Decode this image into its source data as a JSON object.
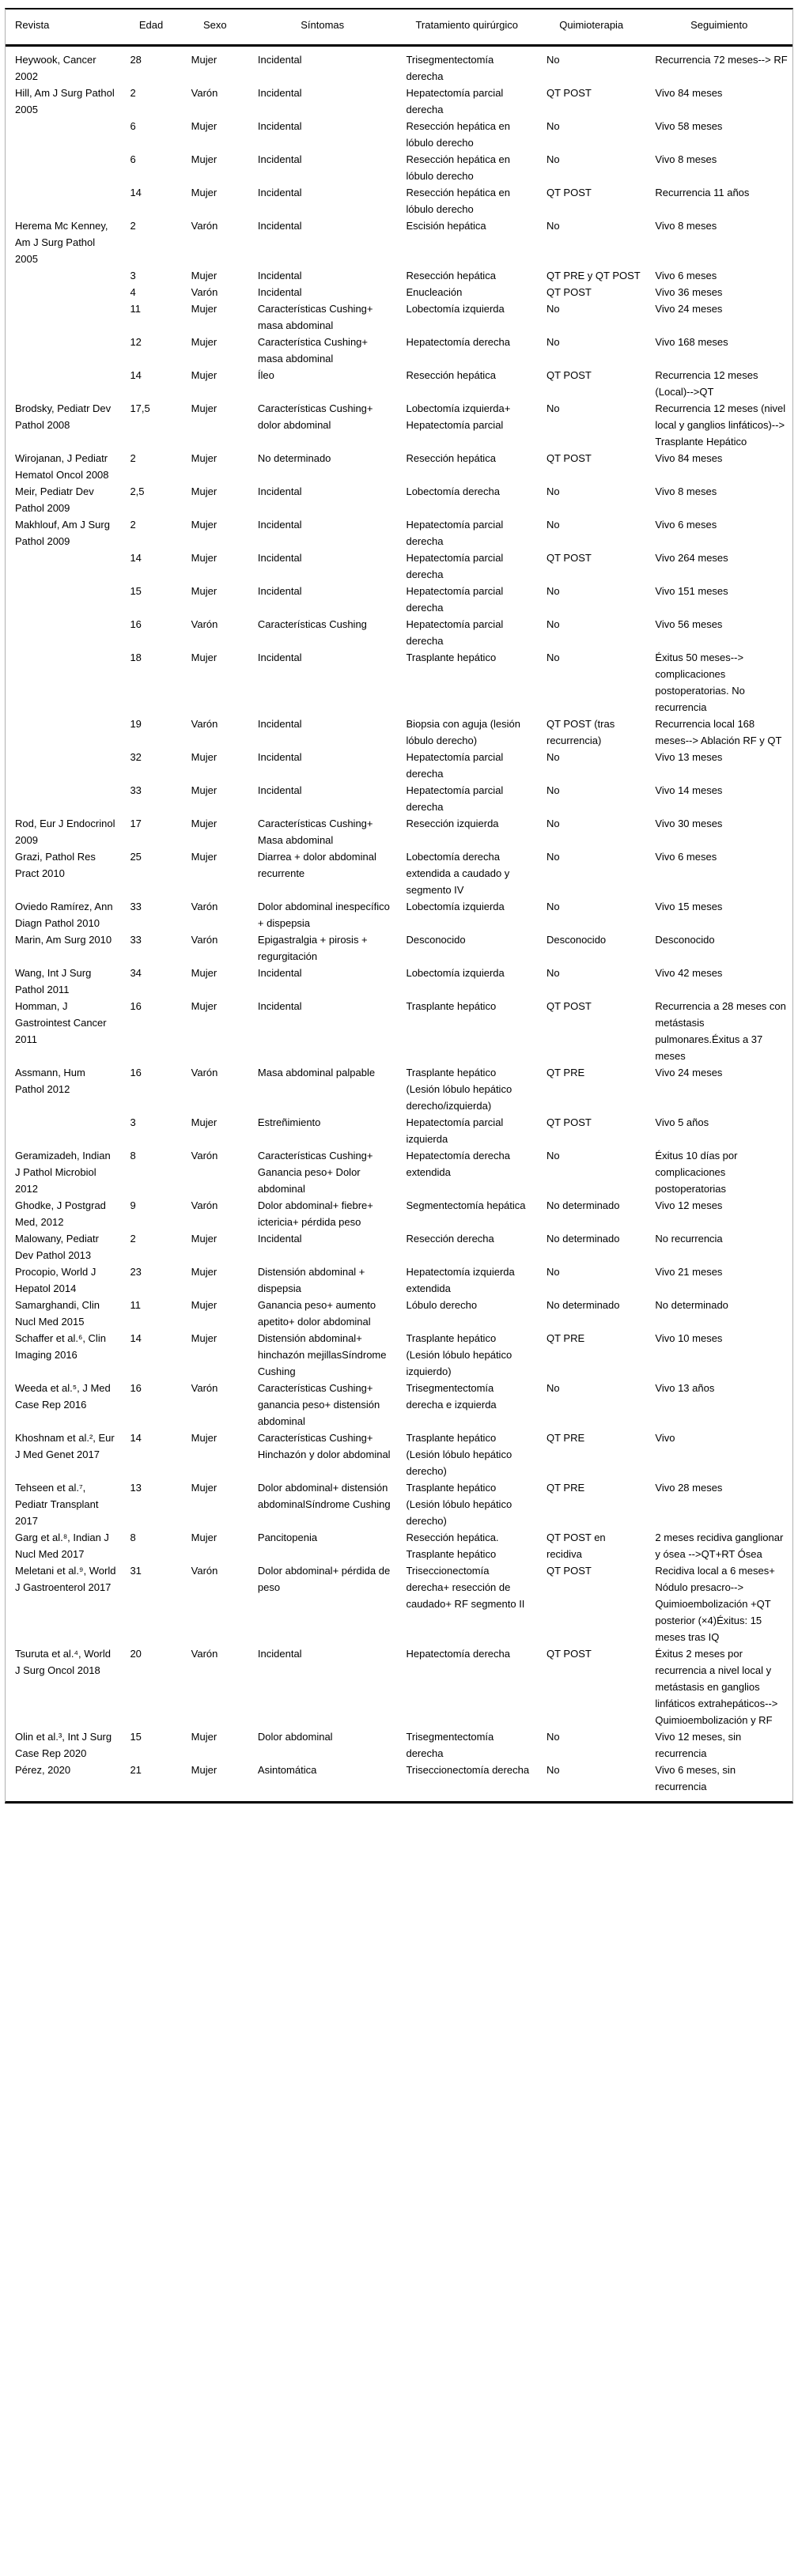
{
  "table": {
    "columns": [
      "Revista",
      "Edad",
      "Sexo",
      "Síntomas",
      "Tratamiento quirúrgico",
      "Quimioterapia",
      "Seguimiento"
    ],
    "rows": [
      {
        "revista": "Heywook, Cancer 2002",
        "edad": "28",
        "sexo": "Mujer",
        "sintomas": "Incidental",
        "tratamiento": "Trisegmentectomía derecha",
        "quimioterapia": "No",
        "seguimiento": "Recurrencia 72 meses--> RF"
      },
      {
        "revista": "Hill, Am J Surg Pathol 2005",
        "edad": "2",
        "sexo": "Varón",
        "sintomas": "Incidental",
        "tratamiento": "Hepatectomía parcial derecha",
        "quimioterapia": "QT POST",
        "seguimiento": "Vivo 84 meses"
      },
      {
        "revista": "",
        "edad": "6",
        "sexo": "Mujer",
        "sintomas": "Incidental",
        "tratamiento": "Resección hepática en lóbulo derecho",
        "quimioterapia": "No",
        "seguimiento": "Vivo 58 meses"
      },
      {
        "revista": "",
        "edad": "6",
        "sexo": "Mujer",
        "sintomas": "Incidental",
        "tratamiento": "Resección hepática en lóbulo derecho",
        "quimioterapia": "No",
        "seguimiento": "Vivo 8 meses"
      },
      {
        "revista": "",
        "edad": "14",
        "sexo": "Mujer",
        "sintomas": "Incidental",
        "tratamiento": "Resección hepática en lóbulo derecho",
        "quimioterapia": "QT POST",
        "seguimiento": "Recurrencia 11 años"
      },
      {
        "revista": "Herema Mc Kenney, Am J Surg Pathol 2005",
        "edad": "2",
        "sexo": "Varón",
        "sintomas": "Incidental",
        "tratamiento": "Escisión hepática",
        "quimioterapia": "No",
        "seguimiento": "Vivo 8 meses"
      },
      {
        "revista": "",
        "edad": "3",
        "sexo": "Mujer",
        "sintomas": "Incidental",
        "tratamiento": "Resección hepática",
        "quimioterapia": "QT PRE y QT POST",
        "seguimiento": "Vivo 6 meses"
      },
      {
        "revista": "",
        "edad": "4",
        "sexo": "Varón",
        "sintomas": "Incidental",
        "tratamiento": "Enucleación",
        "quimioterapia": "QT POST",
        "seguimiento": "Vivo 36 meses"
      },
      {
        "revista": "",
        "edad": "11",
        "sexo": "Mujer",
        "sintomas": "Características Cushing+ masa abdominal",
        "tratamiento": "Lobectomía izquierda",
        "quimioterapia": "No",
        "seguimiento": "Vivo 24 meses"
      },
      {
        "revista": "",
        "edad": "12",
        "sexo": "Mujer",
        "sintomas": "Característica Cushing+ masa abdominal",
        "tratamiento": "Hepatectomía derecha",
        "quimioterapia": "No",
        "seguimiento": "Vivo 168 meses"
      },
      {
        "revista": "",
        "edad": "14",
        "sexo": "Mujer",
        "sintomas": "Íleo",
        "tratamiento": "Resección hepática",
        "quimioterapia": "QT POST",
        "seguimiento": "Recurrencia 12 meses (Local)-->QT"
      },
      {
        "revista": "Brodsky, Pediatr Dev Pathol 2008",
        "edad": "17,5",
        "sexo": "Mujer",
        "sintomas": "Características Cushing+ dolor abdominal",
        "tratamiento": "Lobectomía izquierda+ Hepatectomía parcial",
        "quimioterapia": "No",
        "seguimiento": "Recurrencia 12 meses (nivel local y ganglios linfáticos)--> Trasplante Hepático"
      },
      {
        "revista": "Wirojanan, J Pediatr Hematol Oncol 2008",
        "edad": "2",
        "sexo": "Mujer",
        "sintomas": "No determinado",
        "tratamiento": "Resección hepática",
        "quimioterapia": "QT POST",
        "seguimiento": "Vivo 84 meses"
      },
      {
        "revista": "Meir, Pediatr Dev Pathol 2009",
        "edad": "2,5",
        "sexo": "Mujer",
        "sintomas": "Incidental",
        "tratamiento": "Lobectomía derecha",
        "quimioterapia": "No",
        "seguimiento": "Vivo 8 meses"
      },
      {
        "revista": "Makhlouf, Am J Surg Pathol 2009",
        "edad": "2",
        "sexo": "Mujer",
        "sintomas": "Incidental",
        "tratamiento": "Hepatectomía parcial derecha",
        "quimioterapia": "No",
        "seguimiento": "Vivo 6 meses"
      },
      {
        "revista": "",
        "edad": "14",
        "sexo": "Mujer",
        "sintomas": "Incidental",
        "tratamiento": "Hepatectomía parcial derecha",
        "quimioterapia": "QT POST",
        "seguimiento": "Vivo 264 meses"
      },
      {
        "revista": "",
        "edad": "15",
        "sexo": "Mujer",
        "sintomas": "Incidental",
        "tratamiento": "Hepatectomía parcial derecha",
        "quimioterapia": "No",
        "seguimiento": "Vivo 151 meses"
      },
      {
        "revista": "",
        "edad": "16",
        "sexo": "Varón",
        "sintomas": "Características Cushing",
        "tratamiento": "Hepatectomía parcial derecha",
        "quimioterapia": "No",
        "seguimiento": "Vivo 56 meses"
      },
      {
        "revista": "",
        "edad": "18",
        "sexo": "Mujer",
        "sintomas": "Incidental",
        "tratamiento": "Trasplante hepático",
        "quimioterapia": "No",
        "seguimiento": "Éxitus 50 meses--> complicaciones postoperatorias. No recurrencia"
      },
      {
        "revista": "",
        "edad": "19",
        "sexo": "Varón",
        "sintomas": "Incidental",
        "tratamiento": "Biopsia con aguja (lesión lóbulo derecho)",
        "quimioterapia": "QT POST (tras recurrencia)",
        "seguimiento": "Recurrencia local 168 meses--> Ablación RF y QT"
      },
      {
        "revista": "",
        "edad": "32",
        "sexo": "Mujer",
        "sintomas": "Incidental",
        "tratamiento": "Hepatectomía parcial derecha",
        "quimioterapia": "No",
        "seguimiento": "Vivo 13 meses"
      },
      {
        "revista": "",
        "edad": "33",
        "sexo": "Mujer",
        "sintomas": "Incidental",
        "tratamiento": "Hepatectomía parcial derecha",
        "quimioterapia": "No",
        "seguimiento": "Vivo 14 meses"
      },
      {
        "revista": "Rod, Eur J Endocrinol 2009",
        "edad": "17",
        "sexo": "Mujer",
        "sintomas": "Características Cushing+ Masa abdominal",
        "tratamiento": "Resección izquierda",
        "quimioterapia": "No",
        "seguimiento": "Vivo 30 meses"
      },
      {
        "revista": "Grazi, Pathol Res Pract 2010",
        "edad": "25",
        "sexo": "Mujer",
        "sintomas": "Diarrea + dolor abdominal recurrente",
        "tratamiento": "Lobectomía derecha extendida a caudado y segmento IV",
        "quimioterapia": "No",
        "seguimiento": "Vivo 6 meses"
      },
      {
        "revista": "Oviedo Ramírez, Ann Diagn Pathol 2010",
        "edad": "33",
        "sexo": "Varón",
        "sintomas": "Dolor abdominal inespecífico + dispepsia",
        "tratamiento": "Lobectomía izquierda",
        "quimioterapia": "No",
        "seguimiento": "Vivo 15 meses"
      },
      {
        "revista": "Marin, Am Surg 2010",
        "edad": "33",
        "sexo": "Varón",
        "sintomas": "Epigastralgia + pirosis + regurgitación",
        "tratamiento": "Desconocido",
        "quimioterapia": "Desconocido",
        "seguimiento": "Desconocido"
      },
      {
        "revista": "Wang, Int J Surg Pathol 2011",
        "edad": "34",
        "sexo": "Mujer",
        "sintomas": "Incidental",
        "tratamiento": "Lobectomía izquierda",
        "quimioterapia": "No",
        "seguimiento": "Vivo 42 meses"
      },
      {
        "revista": "Homman, J Gastrointest Cancer 2011",
        "edad": "16",
        "sexo": "Mujer",
        "sintomas": "Incidental",
        "tratamiento": "Trasplante hepático",
        "quimioterapia": "QT POST",
        "seguimiento": "Recurrencia a 28 meses con metástasis pulmonares.Éxitus a 37 meses"
      },
      {
        "revista": "Assmann, Hum Pathol 2012",
        "edad": "16",
        "sexo": "Varón",
        "sintomas": "Masa abdominal palpable",
        "tratamiento": "Trasplante hepático (Lesión lóbulo hepático derecho/izquierda)",
        "quimioterapia": "QT PRE",
        "seguimiento": "Vivo 24 meses"
      },
      {
        "revista": "",
        "edad": "3",
        "sexo": "Mujer",
        "sintomas": "Estreñimiento",
        "tratamiento": "Hepatectomía parcial izquierda",
        "quimioterapia": "QT POST",
        "seguimiento": "Vivo 5 años"
      },
      {
        "revista": "Geramizadeh, Indian J Pathol Microbiol 2012",
        "edad": "8",
        "sexo": "Varón",
        "sintomas": "Características Cushing+ Ganancia peso+ Dolor abdominal",
        "tratamiento": "Hepatectomía derecha extendida",
        "quimioterapia": "No",
        "seguimiento": "Éxitus 10 días por complicaciones postoperatorias"
      },
      {
        "revista": "Ghodke, J Postgrad Med, 2012",
        "edad": "9",
        "sexo": "Varón",
        "sintomas": "Dolor abdominal+ fiebre+ ictericia+ pérdida peso",
        "tratamiento": "Segmentectomía hepática",
        "quimioterapia": "No determinado",
        "seguimiento": "Vivo 12 meses"
      },
      {
        "revista": "Malowany, Pediatr Dev Pathol 2013",
        "edad": "2",
        "sexo": "Mujer",
        "sintomas": "Incidental",
        "tratamiento": "Resección derecha",
        "quimioterapia": "No determinado",
        "seguimiento": "No recurrencia"
      },
      {
        "revista": "Procopio, World J Hepatol 2014",
        "edad": "23",
        "sexo": "Mujer",
        "sintomas": "Distensión abdominal + dispepsia",
        "tratamiento": "Hepatectomía izquierda extendida",
        "quimioterapia": "No",
        "seguimiento": "Vivo 21 meses"
      },
      {
        "revista": "Samarghandi, Clin Nucl Med 2015",
        "edad": "11",
        "sexo": "Mujer",
        "sintomas": "Ganancia peso+ aumento apetito+ dolor abdominal",
        "tratamiento": "Lóbulo derecho",
        "quimioterapia": "No determinado",
        "seguimiento": "No determinado"
      },
      {
        "revista": "Schaffer et al.⁶, Clin Imaging 2016",
        "edad": "14",
        "sexo": "Mujer",
        "sintomas": "Distensión abdominal+ hinchazón mejillasSíndrome Cushing",
        "tratamiento": "Trasplante hepático (Lesión lóbulo hepático izquierdo)",
        "quimioterapia": "QT PRE",
        "seguimiento": "Vivo 10 meses"
      },
      {
        "revista": "Weeda et al.⁵, J Med Case Rep 2016",
        "edad": "16",
        "sexo": "Varón",
        "sintomas": "Características Cushing+ ganancia peso+ distensión abdominal",
        "tratamiento": "Trisegmentectomía derecha e izquierda",
        "quimioterapia": "No",
        "seguimiento": "Vivo 13 años"
      },
      {
        "revista": "Khoshnam et al.², Eur J Med Genet 2017",
        "edad": "14",
        "sexo": "Mujer",
        "sintomas": "Características Cushing+ Hinchazón y dolor abdominal",
        "tratamiento": "Trasplante hepático (Lesión lóbulo hepático derecho)",
        "quimioterapia": "QT PRE",
        "seguimiento": "Vivo"
      },
      {
        "revista": "Tehseen et al.⁷, Pediatr Transplant 2017",
        "edad": "13",
        "sexo": "Mujer",
        "sintomas": "Dolor abdominal+ distensión abdominalSíndrome Cushing",
        "tratamiento": "Trasplante hepático (Lesión lóbulo hepático derecho)",
        "quimioterapia": "QT PRE",
        "seguimiento": "Vivo 28 meses"
      },
      {
        "revista": "Garg et al.⁸, Indian J Nucl Med 2017",
        "edad": "8",
        "sexo": "Mujer",
        "sintomas": "Pancitopenia",
        "tratamiento": "Resección hepática. Trasplante hepático",
        "quimioterapia": "QT POST en recidiva",
        "seguimiento": "2 meses recidiva ganglionar y ósea -->QT+RT Ósea"
      },
      {
        "revista": "Meletani et al.⁹, World J Gastroenterol 2017",
        "edad": "31",
        "sexo": "Varón",
        "sintomas": "Dolor abdominal+ pérdida de peso",
        "tratamiento": "Triseccionectomía derecha+ resección de caudado+ RF segmento II",
        "quimioterapia": "QT POST",
        "seguimiento": "Recidiva local a 6 meses+ Nódulo presacro--> Quimioembolización +QT posterior (×4)Éxitus: 15 meses tras IQ"
      },
      {
        "revista": "Tsuruta et al.⁴, World J Surg Oncol 2018",
        "edad": "20",
        "sexo": "Varón",
        "sintomas": "Incidental",
        "tratamiento": "Hepatectomía derecha",
        "quimioterapia": "QT POST",
        "seguimiento": "Éxitus 2 meses por recurrencia a nivel local y metástasis en ganglios linfáticos extrahepáticos--> Quimioembolización y RF"
      },
      {
        "revista": "Olin et al.³, Int J Surg Case Rep 2020",
        "edad": "15",
        "sexo": "Mujer",
        "sintomas": "Dolor abdominal",
        "tratamiento": "Trisegmentectomía derecha",
        "quimioterapia": "No",
        "seguimiento": "Vivo 12 meses, sin recurrencia"
      },
      {
        "revista": "Pérez, 2020",
        "edad": "21",
        "sexo": "Mujer",
        "sintomas": "Asintomática",
        "tratamiento": "Triseccionectomía derecha",
        "quimioterapia": "No",
        "seguimiento": "Vivo 6 meses, sin recurrencia"
      }
    ]
  }
}
